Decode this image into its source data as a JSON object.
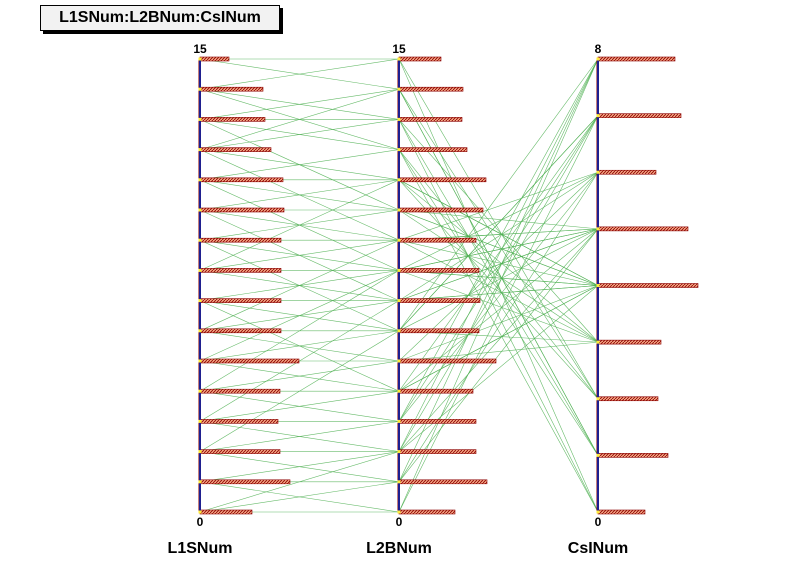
{
  "title": "L1SNum:L2BNum:CsINum",
  "chart_data": {
    "type": "parallel-coordinates",
    "title": "L1SNum:L2BNum:CsINum",
    "axes": [
      {
        "name": "L1SNum",
        "min": 0,
        "max": 15,
        "histogram": {
          "bins": [
            0,
            1,
            2,
            3,
            4,
            5,
            6,
            7,
            8,
            9,
            10,
            11,
            12,
            13,
            14,
            15
          ],
          "counts": [
            52,
            90,
            80,
            78,
            80,
            99,
            81,
            81,
            81,
            81,
            84,
            83,
            71,
            65,
            63,
            29
          ]
        }
      },
      {
        "name": "L2BNum",
        "min": 0,
        "max": 15,
        "histogram": {
          "bins": [
            0,
            1,
            2,
            3,
            4,
            5,
            6,
            7,
            8,
            9,
            10,
            11,
            12,
            13,
            14,
            15
          ],
          "counts": [
            56,
            88,
            77,
            77,
            74,
            97,
            80,
            81,
            80,
            77,
            84,
            87,
            68,
            63,
            64,
            42
          ]
        }
      },
      {
        "name": "CsINum",
        "min": 0,
        "max": 8,
        "histogram": {
          "bins": [
            0,
            1,
            2,
            3,
            4,
            5,
            6,
            7,
            8
          ],
          "counts": [
            47,
            70,
            60,
            63,
            100,
            90,
            58,
            83,
            77
          ]
        }
      }
    ],
    "records": [
      [
        15,
        15,
        0
      ],
      [
        15,
        14,
        1
      ],
      [
        14,
        13,
        0
      ],
      [
        14,
        15,
        2
      ],
      [
        14,
        12,
        1
      ],
      [
        13,
        13,
        1
      ],
      [
        13,
        12,
        0
      ],
      [
        13,
        14,
        2
      ],
      [
        12,
        11,
        2
      ],
      [
        12,
        14,
        1
      ],
      [
        12,
        13,
        3
      ],
      [
        11,
        12,
        2
      ],
      [
        11,
        10,
        3
      ],
      [
        11,
        11,
        4
      ],
      [
        10,
        9,
        4
      ],
      [
        10,
        11,
        3
      ],
      [
        10,
        10,
        5
      ],
      [
        9,
        10,
        4
      ],
      [
        9,
        8,
        5
      ],
      [
        9,
        9,
        6
      ],
      [
        8,
        9,
        5
      ],
      [
        8,
        7,
        4
      ],
      [
        8,
        8,
        6
      ],
      [
        7,
        6,
        7
      ],
      [
        7,
        8,
        3
      ],
      [
        7,
        7,
        5
      ],
      [
        6,
        7,
        6
      ],
      [
        6,
        5,
        4
      ],
      [
        6,
        6,
        8
      ],
      [
        5,
        6,
        7
      ],
      [
        5,
        4,
        5
      ],
      [
        5,
        5,
        3
      ],
      [
        4,
        3,
        8
      ],
      [
        4,
        5,
        6
      ],
      [
        4,
        4,
        4
      ],
      [
        3,
        4,
        7
      ],
      [
        3,
        2,
        5
      ],
      [
        3,
        3,
        6
      ],
      [
        2,
        1,
        8
      ],
      [
        2,
        3,
        7
      ],
      [
        2,
        2,
        4
      ],
      [
        1,
        2,
        8
      ],
      [
        1,
        0,
        7
      ],
      [
        1,
        1,
        5
      ],
      [
        0,
        1,
        6
      ],
      [
        0,
        0,
        8
      ],
      [
        0,
        2,
        7
      ],
      [
        8,
        11,
        4
      ],
      [
        7,
        4,
        4
      ],
      [
        6,
        9,
        5
      ],
      [
        9,
        6,
        3
      ],
      [
        5,
        8,
        4
      ],
      [
        10,
        7,
        5
      ],
      [
        4,
        8,
        5
      ],
      [
        11,
        8,
        4
      ],
      [
        3,
        7,
        4
      ],
      [
        12,
        9,
        3
      ],
      [
        2,
        6,
        5
      ],
      [
        13,
        10,
        4
      ]
    ]
  },
  "colors": {
    "axis": "#1f1f8f",
    "axis_outer": "#8b0000",
    "bar_fill": "#f4a582",
    "bar_stroke": "#8b0000",
    "line": "#4caf50",
    "tick_marker": "#ffeb3b",
    "title_bg": "#f2f2f2"
  }
}
